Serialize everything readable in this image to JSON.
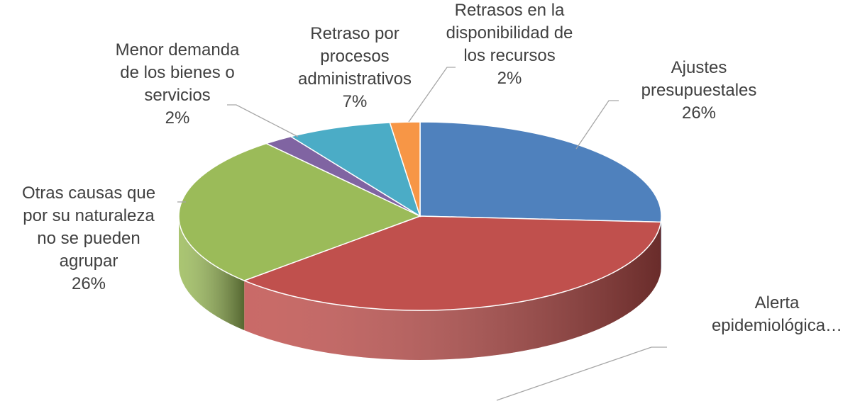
{
  "chart_data": {
    "type": "pie3d",
    "categories": [
      "Ajustes presupuestales",
      "Alerta epidemiológica…",
      "Otras causas que por su naturaleza no se pueden agrupar",
      "Menor demanda de los bienes o servicios",
      "Retraso por procesos administrativos",
      "Retrasos en la disponibilidad de los recursos"
    ],
    "values": [
      26,
      37,
      26,
      2,
      7,
      2
    ],
    "value_labels": [
      "26%",
      null,
      "26%",
      "2%",
      "7%",
      "2%"
    ],
    "colors": [
      "#4f81bd",
      "#c0504d",
      "#9bbb59",
      "#8064a2",
      "#4bacc6",
      "#f79646"
    ]
  }
}
